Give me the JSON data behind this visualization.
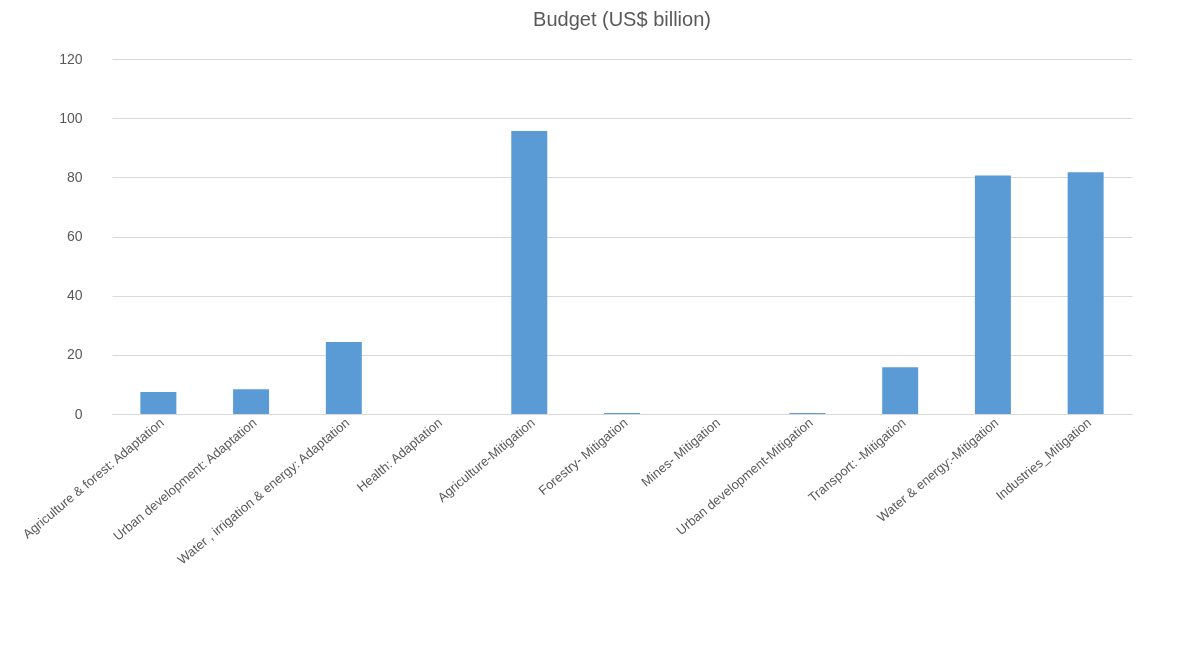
{
  "chart_data": {
    "type": "bar",
    "title": "Budget (US$ billion)",
    "categories": [
      "Agriculture & forest: Adaptation",
      "Urban development: Adaptation",
      "Water , irrigation & energy: Adaptation",
      "Health: Adaptation",
      "Agriculture-Mitigation",
      "Forestry- Mitigation",
      "Mines- Mitigation",
      "Urban development-Mitigation",
      "Transport: -Mitigation",
      "Water & energy:-Mitigation",
      "Industries_Mitigation"
    ],
    "values": [
      7.4,
      8.4,
      24.3,
      0,
      95.7,
      0.3,
      0,
      0.3,
      15.8,
      80.6,
      81.7
    ],
    "color": "#5b9bd5",
    "ylim": [
      0,
      120
    ],
    "yticks": [
      0,
      20,
      40,
      60,
      80,
      100,
      120
    ],
    "grid": "y"
  }
}
